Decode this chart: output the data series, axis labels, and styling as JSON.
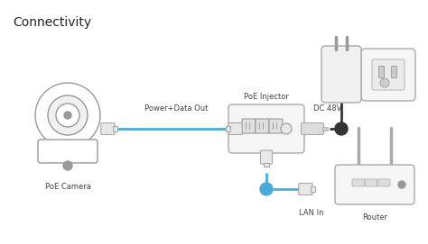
{
  "title": "Connectivity",
  "bg_color": "#ffffff",
  "line_blue": "#4AABDB",
  "line_black": "#333333",
  "gray": "#999999",
  "labels": {
    "title": "Connectivity",
    "power_data": "Power+Data Out",
    "poe_injector": "PoE Injector",
    "dc48v": "DC 48V",
    "poe_camera": "PoE Camera",
    "lan_in": "LAN In",
    "router": "Router"
  },
  "figsize": [
    4.74,
    2.71
  ],
  "dpi": 100,
  "xlim": [
    0,
    474
  ],
  "ylim": [
    0,
    271
  ]
}
